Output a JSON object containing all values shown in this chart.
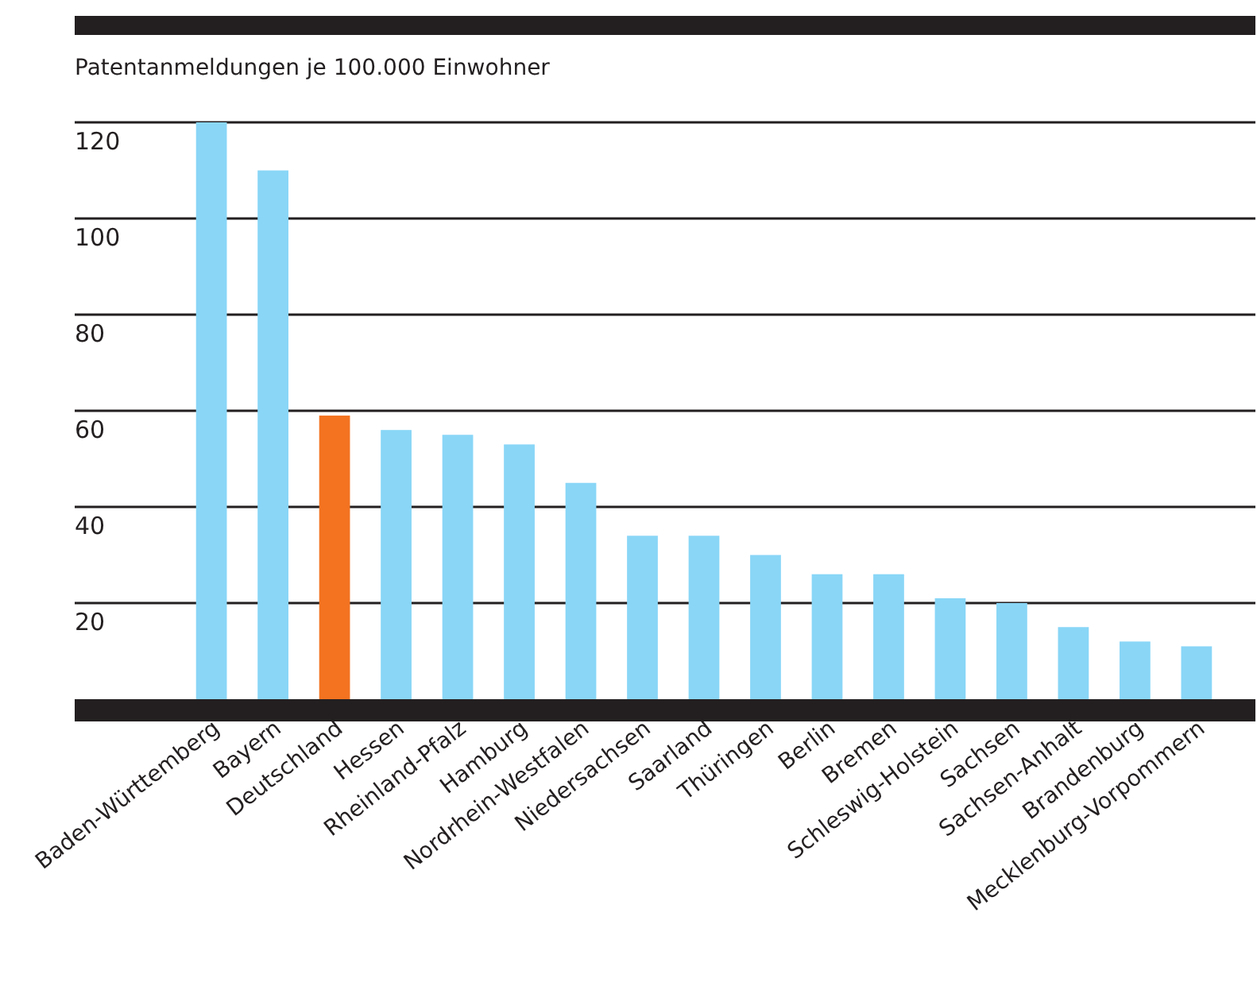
{
  "chart_data": {
    "type": "bar",
    "ylabel": "Patentanmeldungen je 100.000 Einwohner",
    "categories": [
      "Baden-Württemberg",
      "Bayern",
      "Deutschland",
      "Hessen",
      "Rheinland-Pfalz",
      "Hamburg",
      "Nordrhein-Westfalen",
      "Niedersachsen",
      "Saarland",
      "Thüringen",
      "Berlin",
      "Bremen",
      "Schleswig-Holstein",
      "Sachsen",
      "Sachsen-Anhalt",
      "Brandenburg",
      "Mecklenburg-Vorpommern"
    ],
    "values": [
      120,
      110,
      59,
      56,
      55,
      53,
      45,
      34,
      34,
      30,
      26,
      26,
      21,
      20,
      15,
      12,
      11
    ],
    "colors": [
      "#89d6f7",
      "#89d6f7",
      "#f37321",
      "#89d6f7",
      "#89d6f7",
      "#89d6f7",
      "#89d6f7",
      "#89d6f7",
      "#89d6f7",
      "#89d6f7",
      "#89d6f7",
      "#89d6f7",
      "#89d6f7",
      "#89d6f7",
      "#89d6f7",
      "#89d6f7",
      "#89d6f7"
    ],
    "ylim": [
      0,
      120
    ],
    "yticks": [
      20,
      40,
      60,
      80,
      100,
      120
    ],
    "grid": "y"
  }
}
